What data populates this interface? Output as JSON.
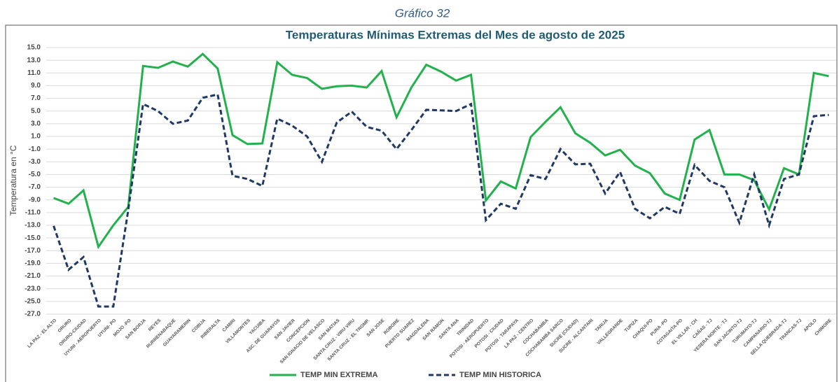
{
  "chart_data": {
    "type": "line",
    "supertitle": "Gráfico 32",
    "title": "Temperaturas  Mínimas Extremas del Mes de agosto de 2025",
    "y_label": "Temperatura en °C",
    "categories": [
      "LA PAZ - EL ALTO",
      "ORURO",
      "ORURO-CIUDAD",
      "UYUNI - AEROPUERTO",
      "UYUNI- PO",
      "MOJO -PO",
      "SAN BORJA",
      "REYES",
      "RURRENABAQUE",
      "GUAYARAMERIN",
      "COBIJA",
      "RIBERALTA",
      "CAMIRI",
      "VILLAMONTES",
      "YACUIBA",
      "ASC. DE GUARAYOS",
      "SAN JAVIER",
      "CONCEPCION",
      "SAN IGNACIO DE VELASCO",
      "SAN MATIAS",
      "SANTA CRUZ - VIRU VIRU",
      "SANTA CRUZ - EL TROMP.",
      "SAN JOSE",
      "ROBORE",
      "PUERTO SUAREZ",
      "MAGDALENA",
      "SAN RAMON",
      "SANTA ANA",
      "TRINIDAD",
      "POTOSI - AEROPUERTO",
      "POTOSI - CIUDAD",
      "POTOSI - TARAPAYA",
      "LA PAZ - CENTRO",
      "COCHABAMBA",
      "COCHABAMBA SARCO",
      "SUCRE (CIUDAD)",
      "SUCRE - ALCANTARI",
      "TARIJA",
      "VALLEGRANDE",
      "TUPIZA",
      "CHAQUI-PO",
      "PUNA -PO",
      "COTAGAITA-PO",
      "EL VILLAR - CH",
      "CAÑAS - TJ",
      "YESERA NORTE - TJ",
      "SAN JACINTO-TJ",
      "TURUMAYO-TJ",
      "CAMPANARIO-TJ",
      "SELLA QUEBRADA-TJ",
      "TRANCAS-TJ",
      "APOLO",
      "CHIMORE"
    ],
    "series": [
      {
        "name": "TEMP MIN EXTREMA",
        "color": "#22b14c",
        "dashed": false,
        "values": [
          -8.7,
          -9.6,
          -7.5,
          -16.4,
          -13.0,
          -10.1,
          12.1,
          11.8,
          12.8,
          12.0,
          14.0,
          11.7,
          1.2,
          -0.2,
          -0.1,
          12.7,
          10.7,
          10.2,
          8.5,
          8.9,
          9.0,
          8.7,
          11.3,
          4.0,
          8.7,
          12.3,
          11.2,
          9.8,
          10.7,
          -9.1,
          -6.1,
          -7.2,
          0.9,
          3.3,
          5.6,
          1.5,
          0.0,
          -2.0,
          -1.1,
          -3.6,
          -4.8,
          -8.0,
          -9.0,
          0.5,
          2.0,
          -5.0,
          -5.0,
          -5.9,
          -10.5,
          -4.0,
          -5.0,
          11.0,
          10.5
        ]
      },
      {
        "name": "TEMP MIN HISTORICA",
        "color": "#1f3864",
        "dashed": true,
        "values": [
          -13.1,
          -20.0,
          -18.0,
          -25.8,
          -25.8,
          -10.6,
          6.1,
          5.0,
          3.0,
          3.5,
          7.1,
          7.6,
          -5.2,
          -5.7,
          -6.8,
          3.8,
          2.7,
          1.0,
          -3.0,
          3.2,
          4.9,
          2.5,
          1.9,
          -1.0,
          2.0,
          5.2,
          5.1,
          5.0,
          6.1,
          -12.2,
          -9.6,
          -10.4,
          -5.1,
          -5.7,
          -1.0,
          -3.4,
          -3.3,
          -8.0,
          -4.6,
          -10.4,
          -11.9,
          -10.1,
          -11.2,
          -3.5,
          -6.0,
          -7.0,
          -12.6,
          -5.0,
          -13.0,
          -5.7,
          -5.0,
          4.2,
          4.4
        ]
      }
    ],
    "ylim": [
      -27,
      15
    ],
    "yticks": [
      {
        "value": 15,
        "label": "15.0"
      },
      {
        "value": 13,
        "label": "13.0"
      },
      {
        "value": 11,
        "label": "11.0"
      },
      {
        "value": 9,
        "label": "9.0"
      },
      {
        "value": 7,
        "label": "7.0"
      },
      {
        "value": 5,
        "label": "5.0"
      },
      {
        "value": 3,
        "label": "3.0"
      },
      {
        "value": 1,
        "label": "1.0"
      },
      {
        "value": -1,
        "label": "-1.0"
      },
      {
        "value": -3,
        "label": "-3.0"
      },
      {
        "value": -5,
        "label": "-5.0"
      },
      {
        "value": -7,
        "label": "-7.0"
      },
      {
        "value": -9,
        "label": "-9.0"
      },
      {
        "value": -11,
        "label": "-11.0"
      },
      {
        "value": -13,
        "label": "-13.0"
      },
      {
        "value": -15,
        "label": "-15.0"
      },
      {
        "value": -17,
        "label": "-17.0"
      },
      {
        "value": -19,
        "label": "-19.0"
      },
      {
        "value": -21,
        "label": "-21.0"
      },
      {
        "value": -23,
        "label": "-23.0"
      },
      {
        "value": -25,
        "label": "-25.0"
      },
      {
        "value": -27,
        "label": "-27.0"
      }
    ],
    "grid": true,
    "legend": "bottom"
  }
}
